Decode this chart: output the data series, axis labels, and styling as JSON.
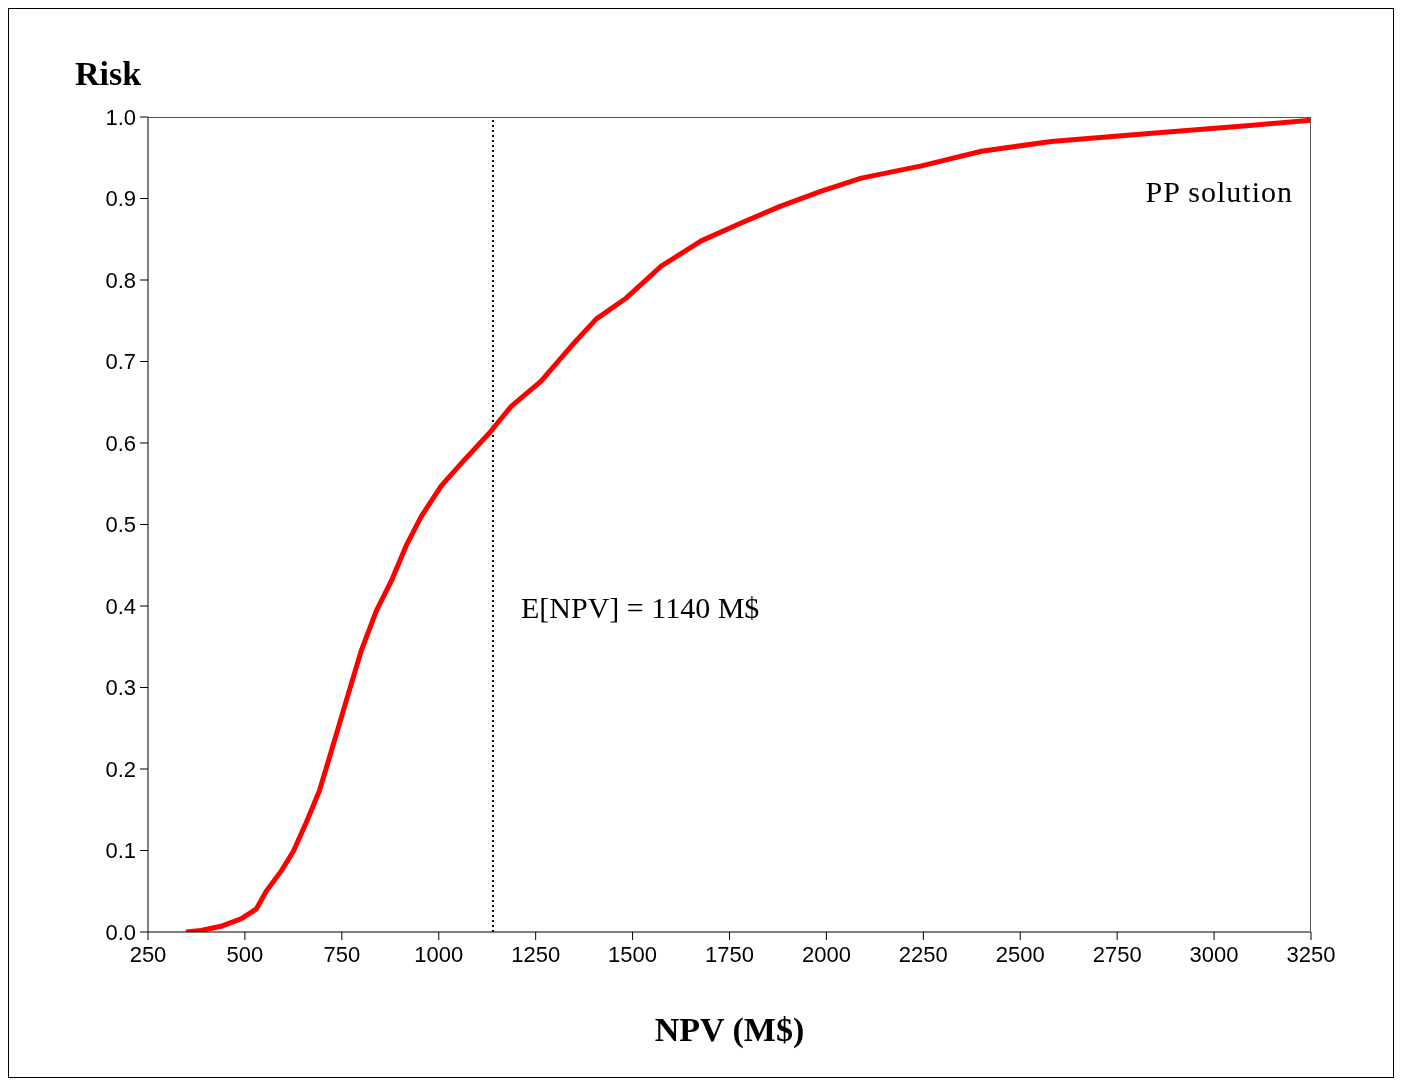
{
  "chart_data": {
    "type": "line",
    "xlabel": "NPV (M$)",
    "ylabel": "Risk",
    "annotations": [
      "PP solution"
    ],
    "x": [
      348,
      387,
      438,
      490,
      529,
      555,
      594,
      625,
      658,
      692,
      723,
      761,
      800,
      839,
      878,
      916,
      955,
      1006,
      1058,
      1130,
      1187,
      1264,
      1342,
      1406,
      1484,
      1574,
      1677,
      1780,
      1884,
      1987,
      2090,
      2245,
      2400,
      2580,
      2840,
      3100,
      3250
    ],
    "series": [
      {
        "color": "#ff0000",
        "values": [
          0,
          0.002,
          0.007,
          0.016,
          0.028,
          0.05,
          0.075,
          0.099,
          0.134,
          0.173,
          0.222,
          0.283,
          0.345,
          0.394,
          0.431,
          0.474,
          0.51,
          0.547,
          0.575,
          0.612,
          0.645,
          0.676,
          0.719,
          0.752,
          0.778,
          0.817,
          0.848,
          0.87,
          0.891,
          0.909,
          0.925,
          0.94,
          0.958,
          0.97,
          0.98,
          0.99,
          0.996
        ]
      }
    ],
    "xlim": [
      250,
      3250
    ],
    "xticks": [
      250,
      500,
      750,
      1000,
      1250,
      1500,
      1750,
      2000,
      2250,
      2500,
      2750,
      3000,
      3250
    ],
    "ylim": [
      0,
      1
    ],
    "yticks": [
      {
        "value": 0,
        "label": "0.0"
      },
      0.1,
      0.2,
      0.3,
      0.4,
      0.5,
      0.6,
      0.7,
      0.8,
      0.9,
      {
        "value": 1,
        "label": "1.0"
      }
    ],
    "ref_lines": [
      {
        "axis": "x",
        "value": 1140,
        "label": "E[NPV] = 1140 M$",
        "color": "#000000",
        "line_style": "dotted"
      }
    ],
    "grid": false,
    "legend": false,
    "marker": "none",
    "line_style": "solid"
  }
}
